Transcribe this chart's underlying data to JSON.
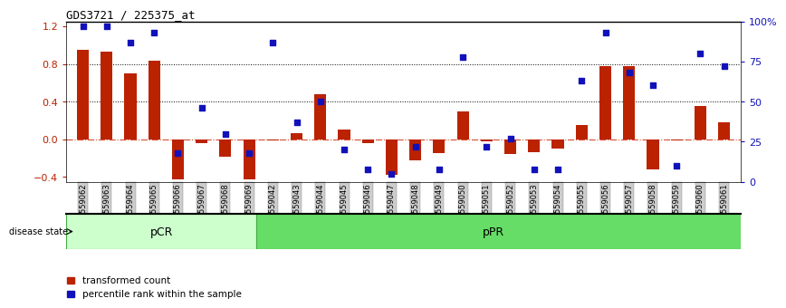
{
  "title": "GDS3721 / 225375_at",
  "samples": [
    "GSM559062",
    "GSM559063",
    "GSM559064",
    "GSM559065",
    "GSM559066",
    "GSM559067",
    "GSM559068",
    "GSM559069",
    "GSM559042",
    "GSM559043",
    "GSM559044",
    "GSM559045",
    "GSM559046",
    "GSM559047",
    "GSM559048",
    "GSM559049",
    "GSM559050",
    "GSM559051",
    "GSM559052",
    "GSM559053",
    "GSM559054",
    "GSM559055",
    "GSM559056",
    "GSM559057",
    "GSM559058",
    "GSM559059",
    "GSM559060",
    "GSM559061"
  ],
  "red_bars": [
    0.95,
    0.93,
    0.7,
    0.83,
    -0.42,
    -0.04,
    -0.18,
    -0.42,
    -0.01,
    0.07,
    0.48,
    0.1,
    -0.04,
    -0.38,
    -0.22,
    -0.15,
    0.3,
    -0.02,
    -0.16,
    -0.14,
    -0.1,
    0.15,
    0.78,
    0.78,
    -0.32,
    -0.01,
    0.35,
    0.18
  ],
  "blue_pcts": [
    97,
    97,
    87,
    93,
    18,
    46,
    30,
    18,
    87,
    37,
    50,
    20,
    8,
    5,
    22,
    8,
    78,
    22,
    27,
    8,
    8,
    63,
    93,
    68,
    60,
    10,
    80,
    72
  ],
  "pCR_count": 8,
  "pPR_count": 20,
  "ylim_left": [
    -0.45,
    1.25
  ],
  "ylim_right": [
    0,
    100
  ],
  "yticks_left": [
    -0.4,
    0.0,
    0.4,
    0.8,
    1.2
  ],
  "yticks_right": [
    0,
    25,
    50,
    75,
    100
  ],
  "ytick_right_labels": [
    "0",
    "25",
    "50",
    "75",
    "100%"
  ],
  "hlines_dotted": [
    0.4,
    0.8
  ],
  "hline_zero_color": "#cc2200",
  "bar_color": "#bb2200",
  "dot_color": "#1111bb",
  "legend_bar_label": "transformed count",
  "legend_dot_label": "percentile rank within the sample",
  "disease_state_label": "disease state",
  "pCR_label": "pCR",
  "pPR_label": "pPR",
  "pCR_color": "#ccffcc",
  "pPR_color": "#66dd66",
  "tick_bg_color": "#cccccc",
  "bar_width": 0.5
}
